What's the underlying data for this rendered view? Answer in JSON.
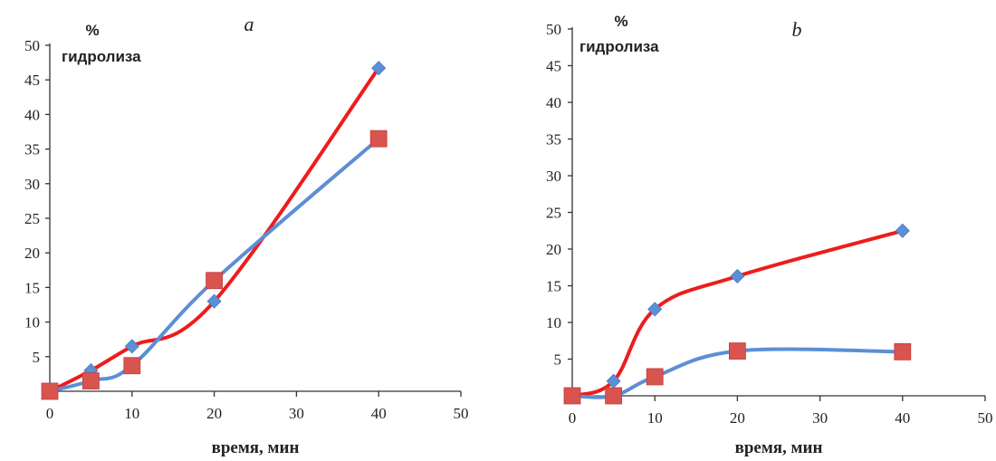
{
  "chart_data": [
    {
      "type": "line",
      "panel_label": "a",
      "ylabel_line1": "%",
      "ylabel_line2": "гидролиза",
      "xlabel": "время, мин",
      "xlim": [
        0,
        50
      ],
      "ylim": [
        0,
        50
      ],
      "xticks": [
        0,
        10,
        20,
        30,
        40,
        50
      ],
      "yticks": [
        5,
        10,
        15,
        20,
        25,
        30,
        35,
        40,
        45,
        50
      ],
      "grid": false,
      "series": [
        {
          "marker": "diamond",
          "line_color": "#ee1c1c",
          "marker_color": "#5b8fd6",
          "x": [
            0,
            5,
            10,
            20,
            40
          ],
          "y": [
            0,
            3,
            6.5,
            13,
            46.7
          ]
        },
        {
          "marker": "square",
          "line_color": "#5b8fd6",
          "marker_color": "#d9534f",
          "x": [
            0,
            5,
            10,
            20,
            40
          ],
          "y": [
            0,
            1.5,
            3.7,
            16,
            36.5
          ]
        }
      ]
    },
    {
      "type": "line",
      "panel_label": "b",
      "ylabel_line1": "%",
      "ylabel_line2": "гидролиза",
      "xlabel": "время, мин",
      "xlim": [
        0,
        50
      ],
      "ylim": [
        0,
        50
      ],
      "xticks": [
        0,
        10,
        20,
        30,
        40,
        50
      ],
      "yticks": [
        5,
        10,
        15,
        20,
        25,
        30,
        35,
        40,
        45,
        50
      ],
      "grid": false,
      "series": [
        {
          "marker": "diamond",
          "line_color": "#ee1c1c",
          "marker_color": "#5b8fd6",
          "x": [
            0,
            5,
            10,
            20,
            40
          ],
          "y": [
            0,
            2,
            11.8,
            16.3,
            22.5
          ]
        },
        {
          "marker": "square",
          "line_color": "#5b8fd6",
          "marker_color": "#d9534f",
          "x": [
            0,
            5,
            10,
            20,
            40
          ],
          "y": [
            0,
            0,
            2.6,
            6.1,
            6
          ]
        }
      ]
    }
  ]
}
